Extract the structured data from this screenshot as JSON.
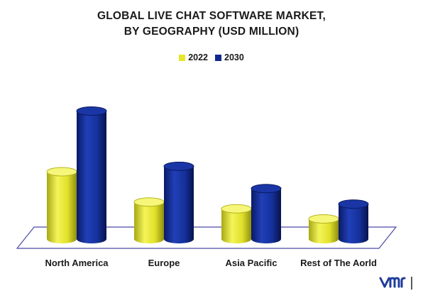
{
  "chart_data": {
    "type": "bar",
    "title_line1": "GLOBAL LIVE CHAT SOFTWARE MARKET,",
    "title_line2": "BY GEOGRAPHY (USD MILLION)",
    "categories": [
      "North America",
      "Europe",
      "Asia Pacific",
      "Rest of The Aorld"
    ],
    "series": [
      {
        "name": "2022",
        "values": [
          100,
          55,
          45,
          30
        ],
        "color": "#e6e62a"
      },
      {
        "name": "2030",
        "values": [
          190,
          108,
          75,
          52
        ],
        "color": "#12288c"
      }
    ],
    "ylim": [
      0,
      200
    ],
    "legend_position": "top-center",
    "grid": false,
    "style": "3d-cylinder"
  },
  "logo": {
    "icon": "vmr-logo-icon",
    "color": "#1f3c9c"
  }
}
